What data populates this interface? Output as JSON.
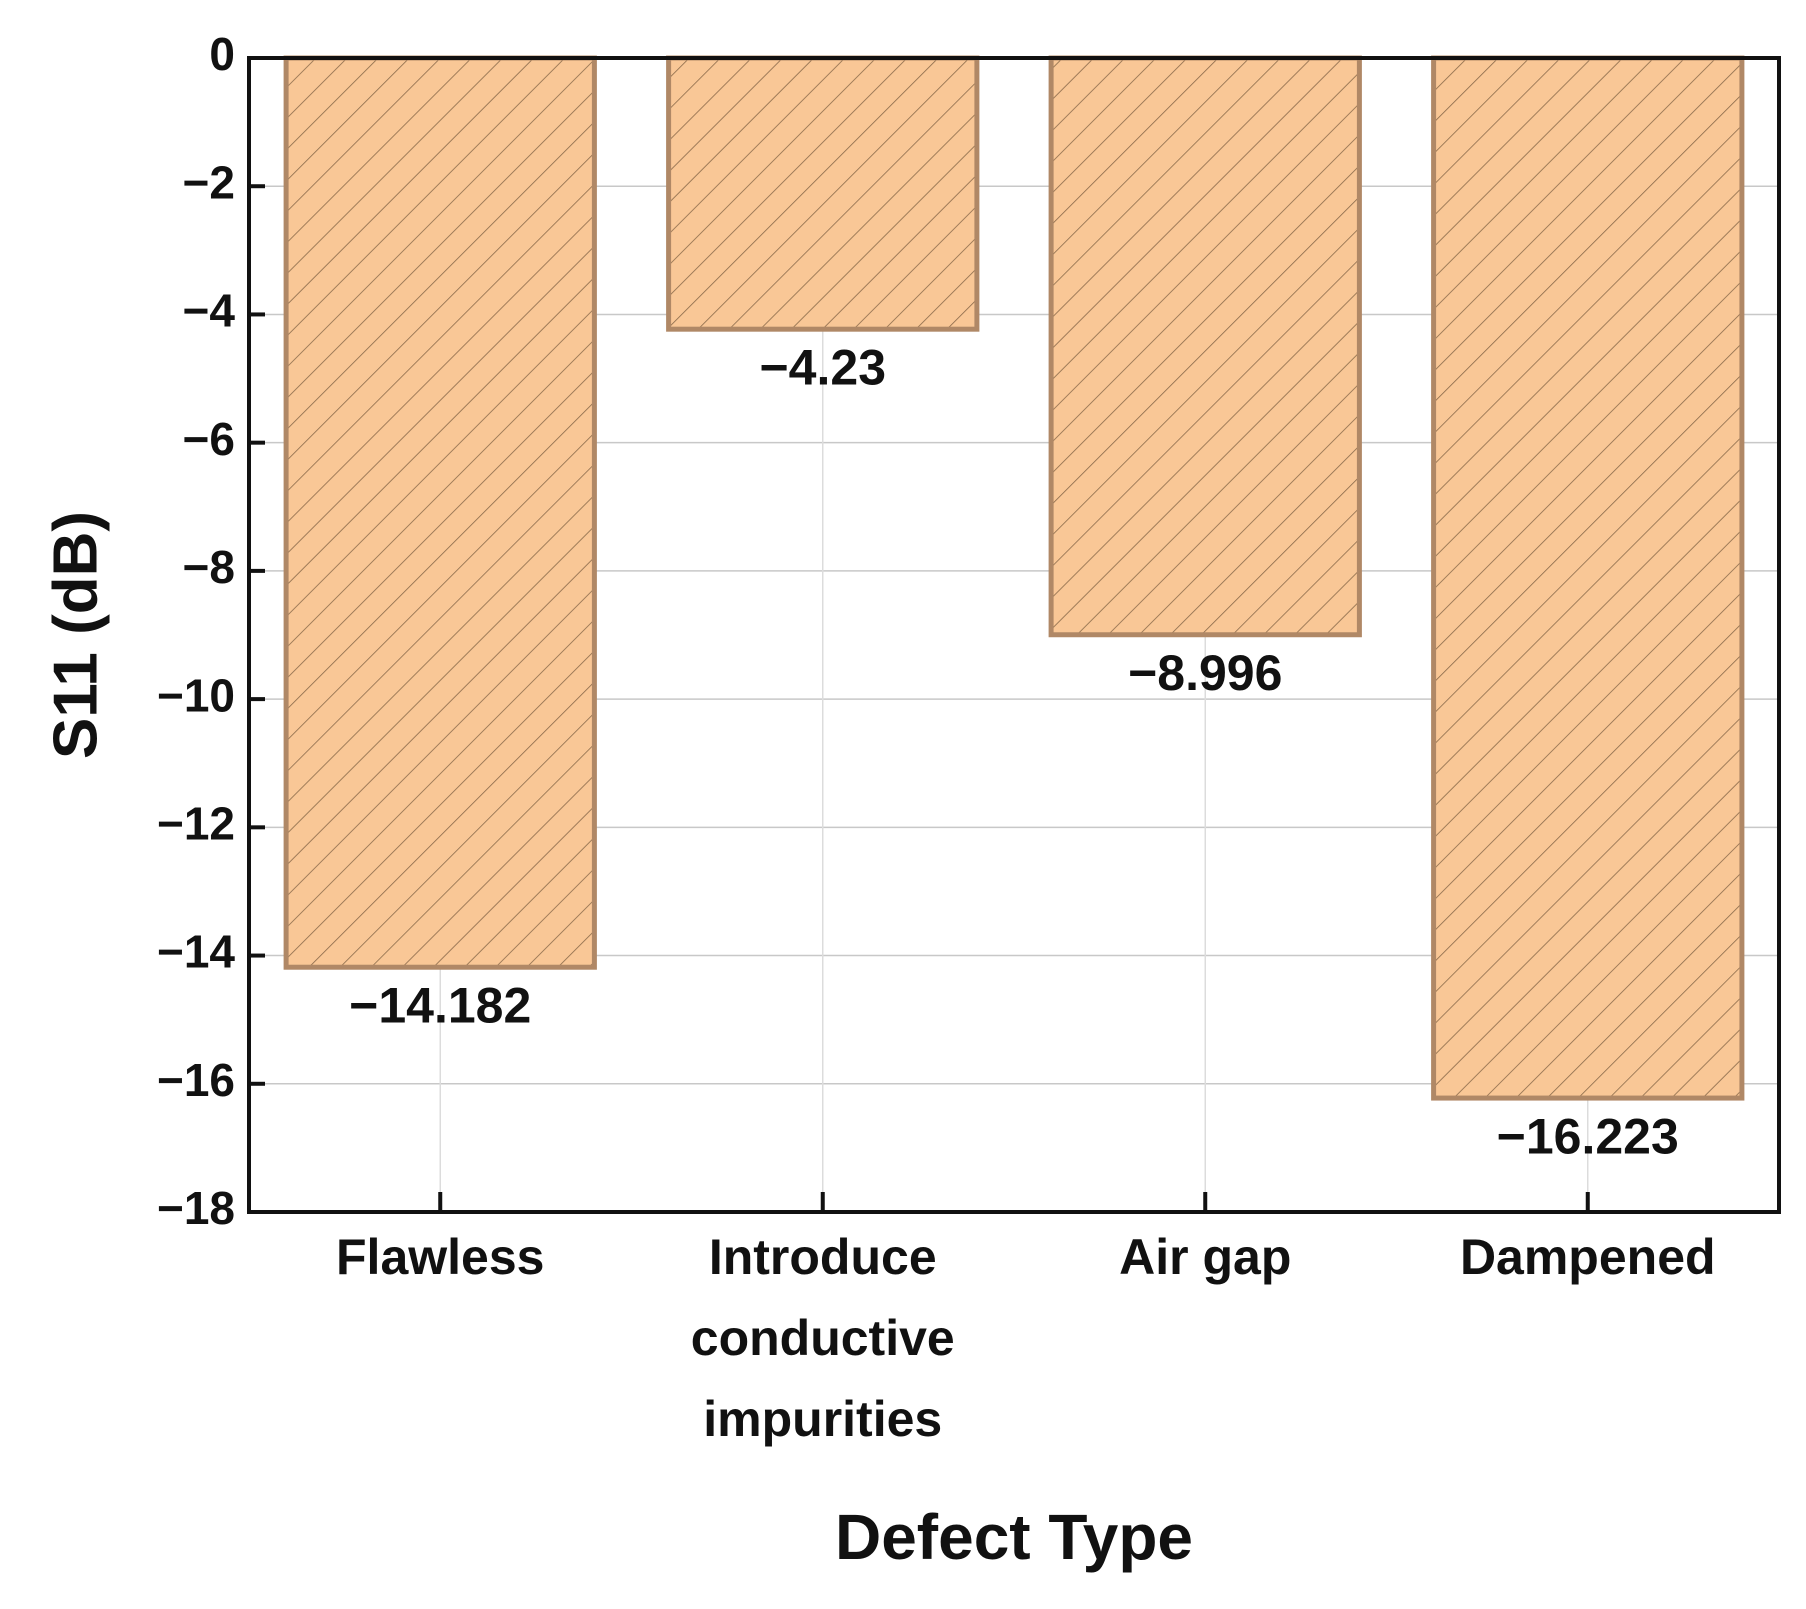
{
  "chart_data": {
    "type": "bar",
    "x_label": "Defect Type",
    "y_label": "S11 (dB)",
    "categories": [
      "Flawless",
      "Introduce conductive impurities",
      "Air gap",
      "Dampened"
    ],
    "values": [
      -14.182,
      -4.23,
      -8.996,
      -16.223
    ],
    "value_labels": [
      "−14.182",
      "−4.23",
      "−8.996",
      "−16.223"
    ],
    "color": "#f9c796",
    "edge_color": "#b08866",
    "ylim": [
      -18,
      0
    ],
    "yticks": [
      {
        "value": -18,
        "label": "−18"
      },
      {
        "value": -16,
        "label": "−16"
      },
      {
        "value": -14,
        "label": "−14"
      },
      {
        "value": -12,
        "label": "−12"
      },
      {
        "value": -10,
        "label": "−10"
      },
      {
        "value": -8,
        "label": "−8"
      },
      {
        "value": -6,
        "label": "−6"
      },
      {
        "value": -4,
        "label": "−4"
      },
      {
        "value": -2,
        "label": "−2"
      },
      0
    ],
    "grid": true
  }
}
